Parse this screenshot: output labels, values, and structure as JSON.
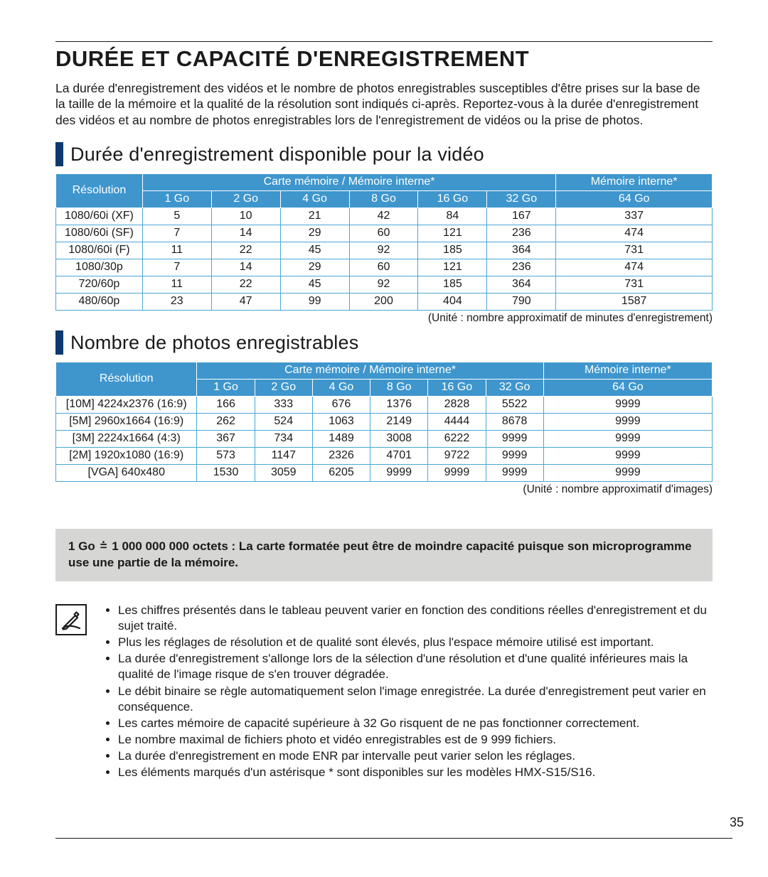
{
  "page": {
    "title": "DURÉE ET CAPACITÉ D'ENREGISTREMENT",
    "intro": "La durée d'enregistrement des vidéos et le nombre de photos enregistrables susceptibles d'être prises sur la base de la taille de la mémoire et la qualité de la résolution sont indiqués ci-après. Reportez-vous à la durée d'enregistrement des vidéos et au nombre de photos enregistrables lors de l'enregistrement de vidéos ou la prise de photos.",
    "number": "35"
  },
  "sectionVideo": {
    "heading": "Durée d'enregistrement disponible pour la vidéo",
    "header": {
      "res": "Résolution",
      "card": "Carte mémoire / Mémoire interne*",
      "mem": "Mémoire interne*",
      "caps": [
        "1 Go",
        "2 Go",
        "4 Go",
        "8 Go",
        "16 Go",
        "32 Go",
        "64 Go"
      ]
    },
    "rows": [
      {
        "res": "1080/60i (XF)",
        "v": [
          "5",
          "10",
          "21",
          "42",
          "84",
          "167",
          "337"
        ]
      },
      {
        "res": "1080/60i (SF)",
        "v": [
          "7",
          "14",
          "29",
          "60",
          "121",
          "236",
          "474"
        ]
      },
      {
        "res": "1080/60i (F)",
        "v": [
          "11",
          "22",
          "45",
          "92",
          "185",
          "364",
          "731"
        ]
      },
      {
        "res": "1080/30p",
        "v": [
          "7",
          "14",
          "29",
          "60",
          "121",
          "236",
          "474"
        ]
      },
      {
        "res": "720/60p",
        "v": [
          "11",
          "22",
          "45",
          "92",
          "185",
          "364",
          "731"
        ]
      },
      {
        "res": "480/60p",
        "v": [
          "23",
          "47",
          "99",
          "200",
          "404",
          "790",
          "1587"
        ]
      }
    ],
    "unit": "(Unité : nombre approximatif de minutes d'enregistrement)"
  },
  "sectionPhoto": {
    "heading": "Nombre de photos enregistrables",
    "header": {
      "res": "Résolution",
      "card": "Carte mémoire / Mémoire interne*",
      "mem": "Mémoire interne*",
      "caps": [
        "1 Go",
        "2 Go",
        "4 Go",
        "8 Go",
        "16 Go",
        "32 Go",
        "64 Go"
      ]
    },
    "rows": [
      {
        "res": "[10M] 4224x2376 (16:9)",
        "v": [
          "166",
          "333",
          "676",
          "1376",
          "2828",
          "5522",
          "9999"
        ]
      },
      {
        "res": "[5M] 2960x1664 (16:9)",
        "v": [
          "262",
          "524",
          "1063",
          "2149",
          "4444",
          "8678",
          "9999"
        ]
      },
      {
        "res": "[3M] 2224x1664 (4:3)",
        "v": [
          "367",
          "734",
          "1489",
          "3008",
          "6222",
          "9999",
          "9999"
        ]
      },
      {
        "res": "[2M] 1920x1080 (16:9)",
        "v": [
          "573",
          "1147",
          "2326",
          "4701",
          "9722",
          "9999",
          "9999"
        ]
      },
      {
        "res": "[VGA] 640x480",
        "v": [
          "1530",
          "3059",
          "6205",
          "9999",
          "9999",
          "9999",
          "9999"
        ]
      }
    ],
    "unit": "(Unité : nombre approximatif d'images)"
  },
  "footnote": {
    "lead": "1 Go",
    "text": "1 000 000 000 octets : La carte formatée peut être de moindre capacité puisque son microprogramme use une partie de la mémoire."
  },
  "notes": [
    "Les chiffres présentés dans le tableau peuvent varier en fonction des conditions réelles d'enregistrement et du sujet traité.",
    "Plus les réglages de résolution et de qualité sont élevés, plus l'espace mémoire utilisé est important.",
    "La durée d'enregistrement s'allonge lors de la sélection d'une résolution et d'une qualité inférieures mais la qualité de l'image risque de s'en trouver dégradée.",
    "Le débit binaire se règle automatiquement selon l'image enregistrée. La durée d'enregistrement peut varier en conséquence.",
    "Les cartes mémoire de capacité supérieure à 32 Go risquent de ne pas fonctionner correctement.",
    "Le nombre maximal de fichiers photo et vidéo enregistrables est de 9 999 fichiers.",
    "La durée d'enregistrement en mode ENR par intervalle peut varier selon les réglages.",
    "Les éléments marqués d'un astérisque * sont disponibles sur les modèles HMX-S15/S16."
  ],
  "style": {
    "accent": "#0c3a6e",
    "headerBg": "#3e96cd",
    "border": "#4aa7d6",
    "noteBoxBg": "#d6d6d4"
  }
}
